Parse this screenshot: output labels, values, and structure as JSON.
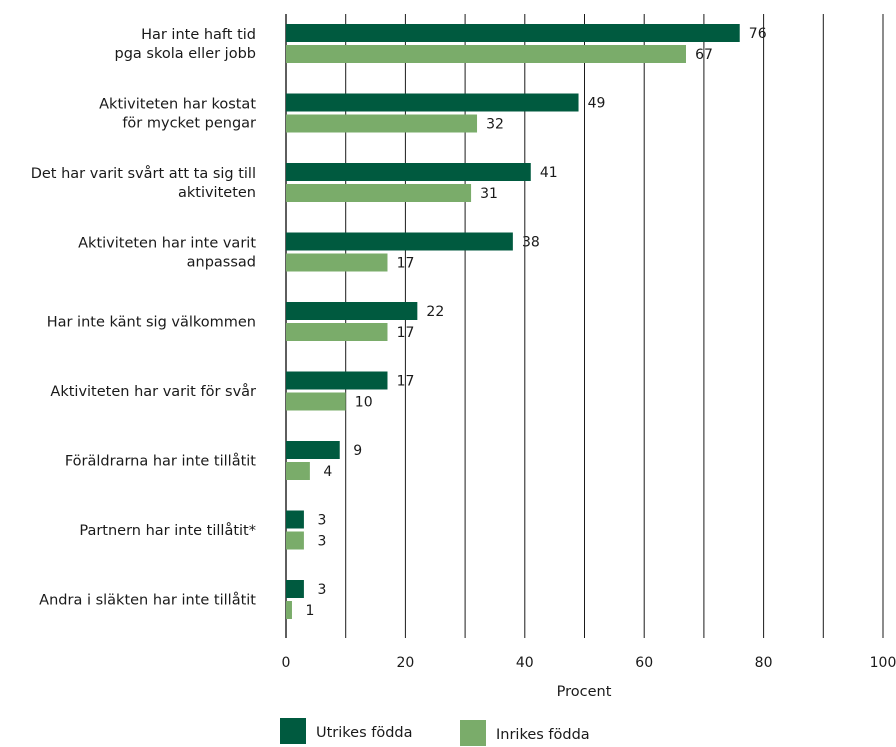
{
  "chart_data": {
    "type": "bar",
    "orientation": "horizontal",
    "categories": [
      [
        "Har inte haft tid",
        "pga skola eller jobb"
      ],
      [
        "Aktiviteten har kostat",
        "för mycket pengar"
      ],
      [
        "Det har varit svårt att ta sig till",
        "aktiviteten"
      ],
      [
        "Aktiviteten har inte varit",
        "anpassad"
      ],
      [
        "Har inte känt sig välkommen"
      ],
      [
        "Aktiviteten har varit för svår"
      ],
      [
        "Föräldrarna har inte tillåtit"
      ],
      [
        "Partnern har inte tillåtit*"
      ],
      [
        "Andra i släkten har inte tillåtit"
      ]
    ],
    "series": [
      {
        "name": "Utrikes födda",
        "color": "#005a3f",
        "values": [
          76,
          49,
          41,
          38,
          22,
          17,
          9,
          3,
          3
        ]
      },
      {
        "name": "Inrikes födda",
        "color": "#7aac6a",
        "values": [
          67,
          32,
          31,
          17,
          17,
          10,
          4,
          3,
          1
        ]
      }
    ],
    "xlabel": "Procent",
    "xlim": [
      0,
      100
    ],
    "xticks": [
      0,
      20,
      40,
      60,
      80,
      100
    ],
    "grid": true,
    "legend_position": "bottom"
  }
}
